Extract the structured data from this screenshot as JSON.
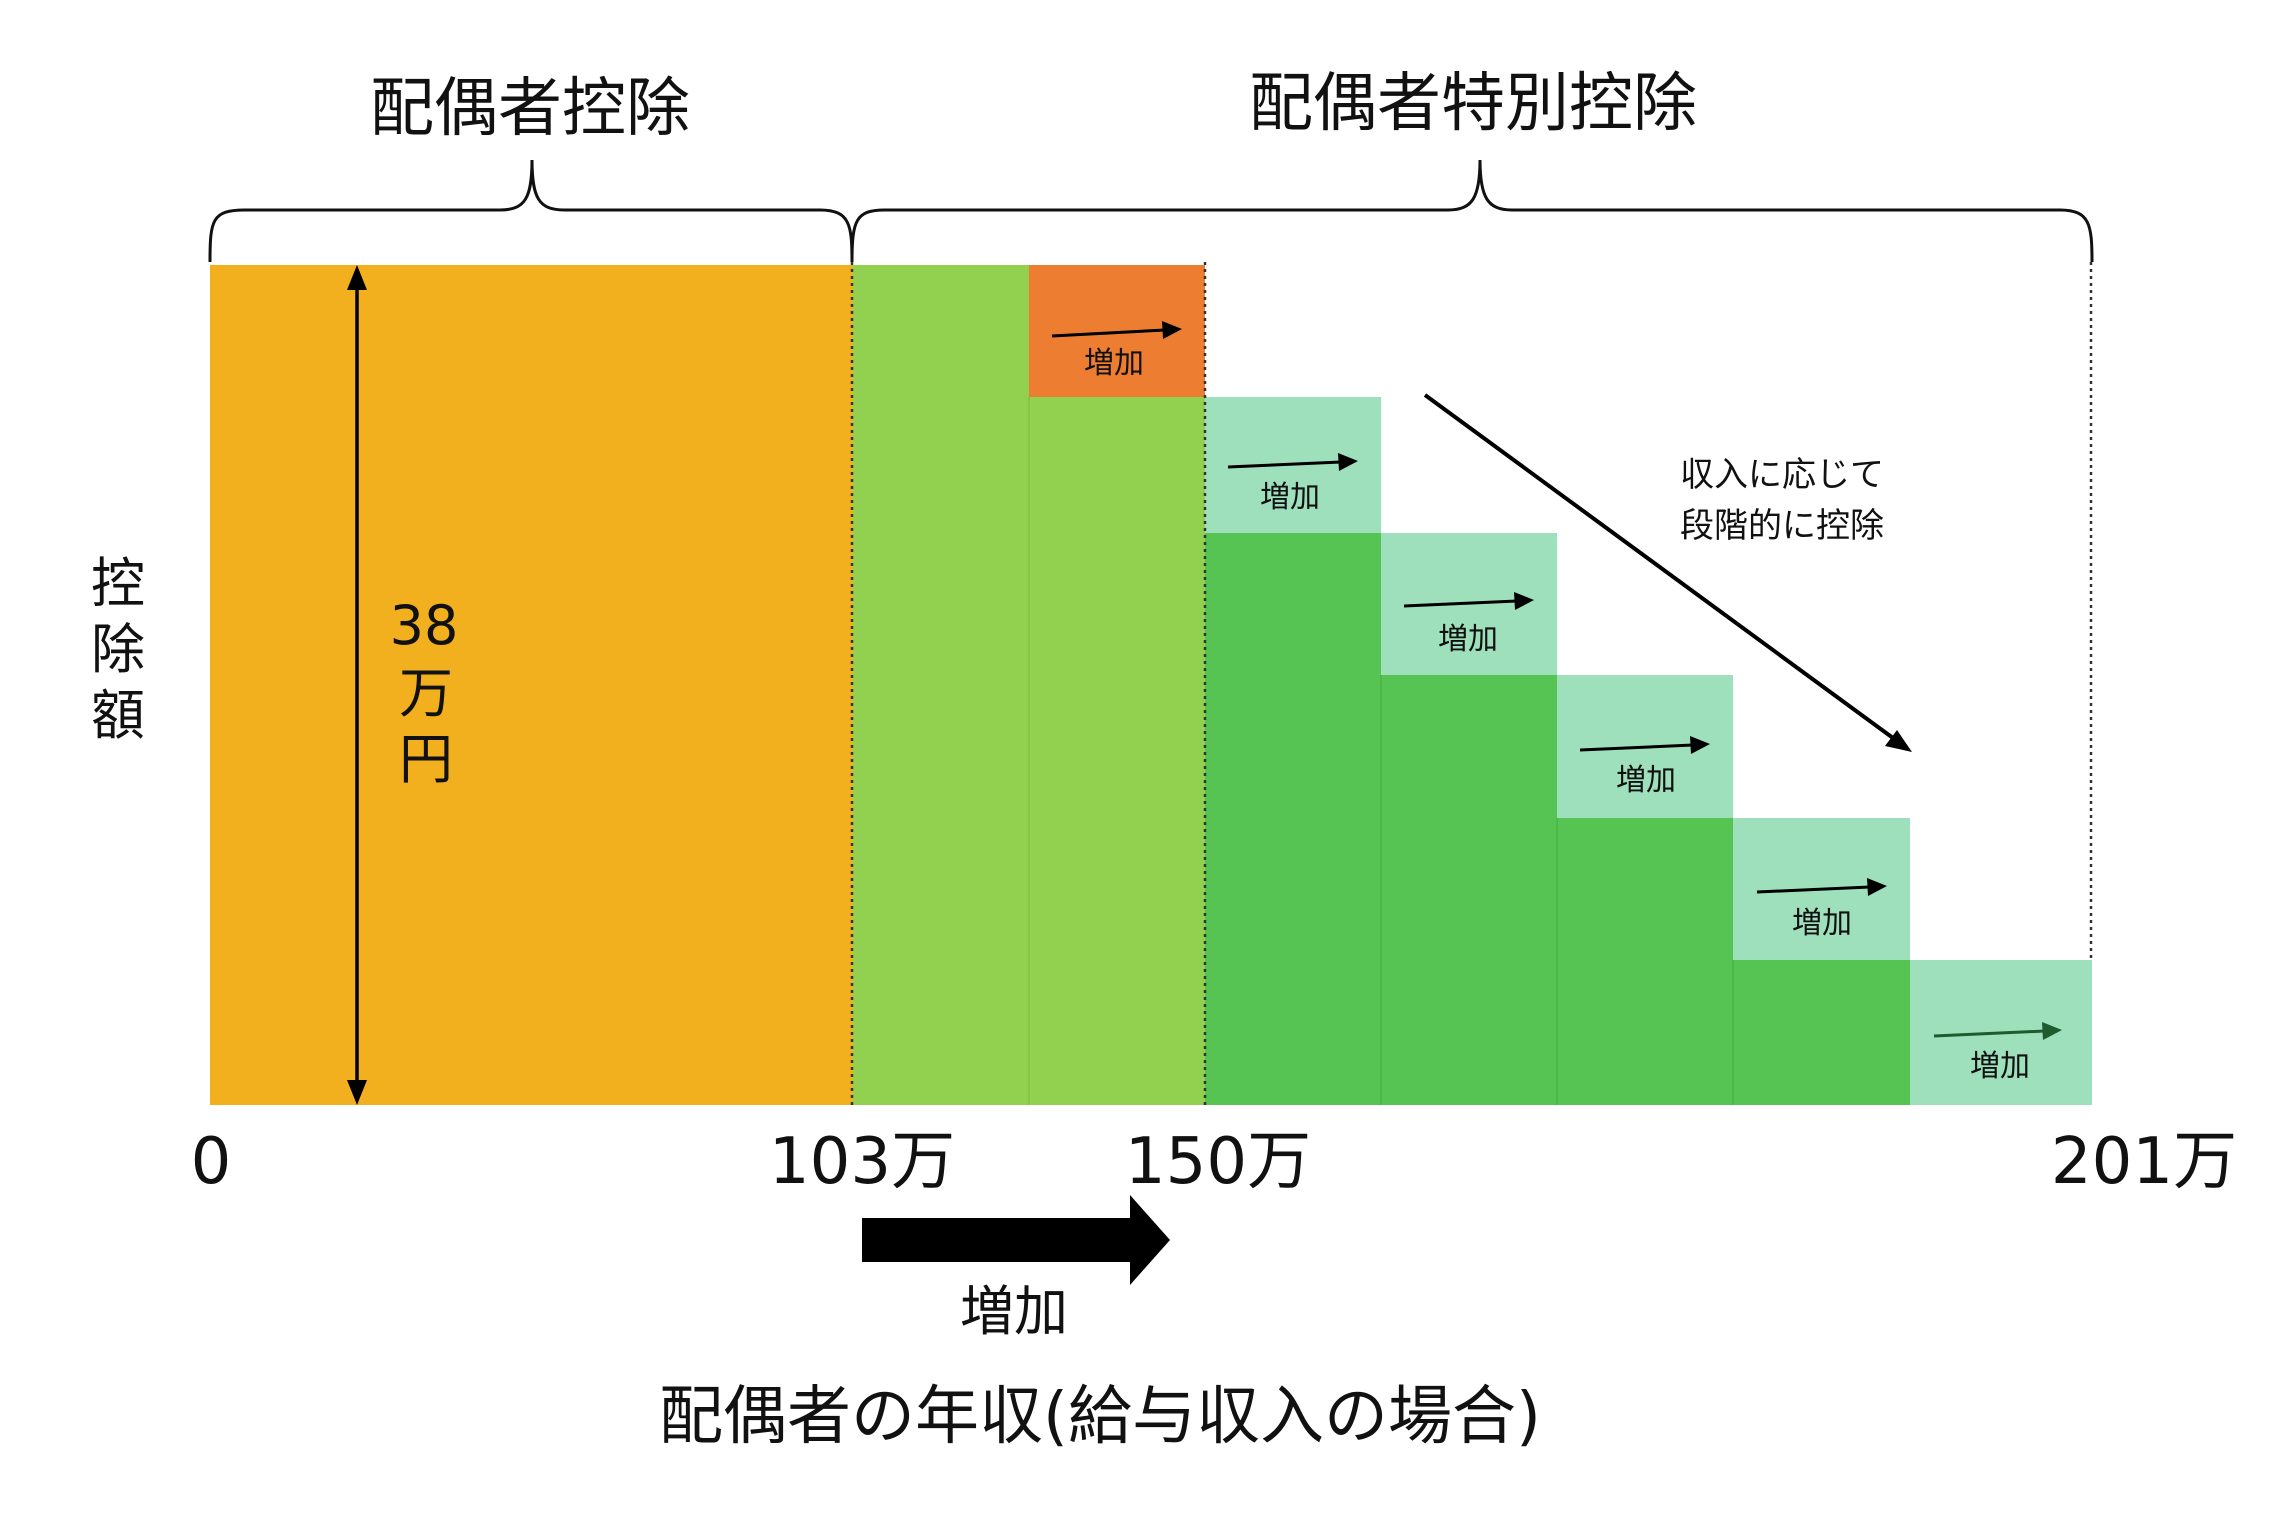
{
  "headings": {
    "left": "配偶者控除",
    "right": "配偶者特別控除"
  },
  "y_axis_label": [
    "控",
    "除",
    "額"
  ],
  "amount_label": [
    "38",
    "万",
    "円"
  ],
  "x_ticks": [
    "0",
    "103万",
    "150万",
    "201万"
  ],
  "cell_label": "増加",
  "annotation": [
    "収入に応じて",
    "段階的に控除"
  ],
  "bottom_arrow_label": "増加",
  "x_axis_title": "配偶者の年収(給与収入の場合)",
  "colors": {
    "spouse_deduction": "#F2B01E",
    "light_green": "#92D050",
    "dark_green": "#56C453",
    "mint": "#9EDFBC",
    "orange": "#ED7D31",
    "ink": "#000000"
  }
}
